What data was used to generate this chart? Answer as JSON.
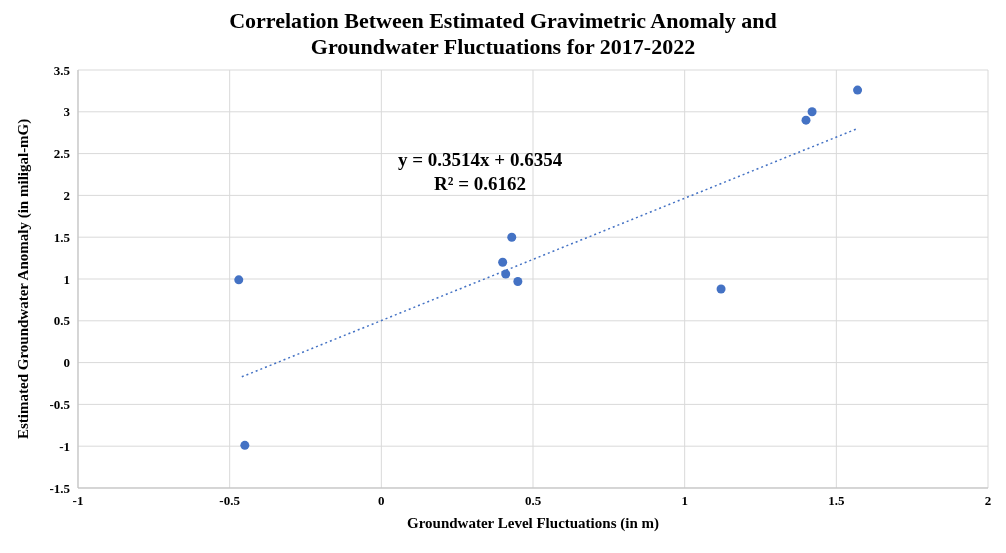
{
  "chart_data": {
    "type": "scatter",
    "title": "Correlation Between Estimated Gravimetric Anomaly and Groundwater Fluctuations for 2017-2022",
    "xlabel": "Groundwater Level Fluctuations (in m)",
    "ylabel": "Estimated Groundwater Anomaly (in miligal-mG)",
    "series": [
      {
        "color": "#4472c4",
        "x": [
          -0.47,
          -0.45,
          0.4,
          0.41,
          0.43,
          0.45,
          1.12,
          1.4,
          1.42,
          1.57
        ],
        "values": [
          0.99,
          -0.99,
          1.2,
          1.06,
          1.5,
          0.97,
          0.88,
          2.9,
          3.0,
          3.26
        ],
        "marker": "circle"
      },
      {
        "type": "line",
        "color": "#4472c4",
        "x": [
          -0.46,
          1.57
        ],
        "values": [
          -0.17,
          2.8
        ],
        "line_style": "dotted",
        "marker": "none"
      }
    ],
    "annotations": [
      "y = 0.3514x + 0.6354",
      "R² = 0.6162"
    ],
    "xlim": [
      -1,
      2
    ],
    "xticks": [
      -1,
      -0.5,
      0,
      0.5,
      1,
      1.5,
      2
    ],
    "ylim": [
      -1.5,
      3.5
    ],
    "yticks": [
      -1.5,
      -1,
      -0.5,
      0,
      0.5,
      1,
      1.5,
      2,
      2.5,
      3,
      3.5
    ],
    "grid": true
  }
}
